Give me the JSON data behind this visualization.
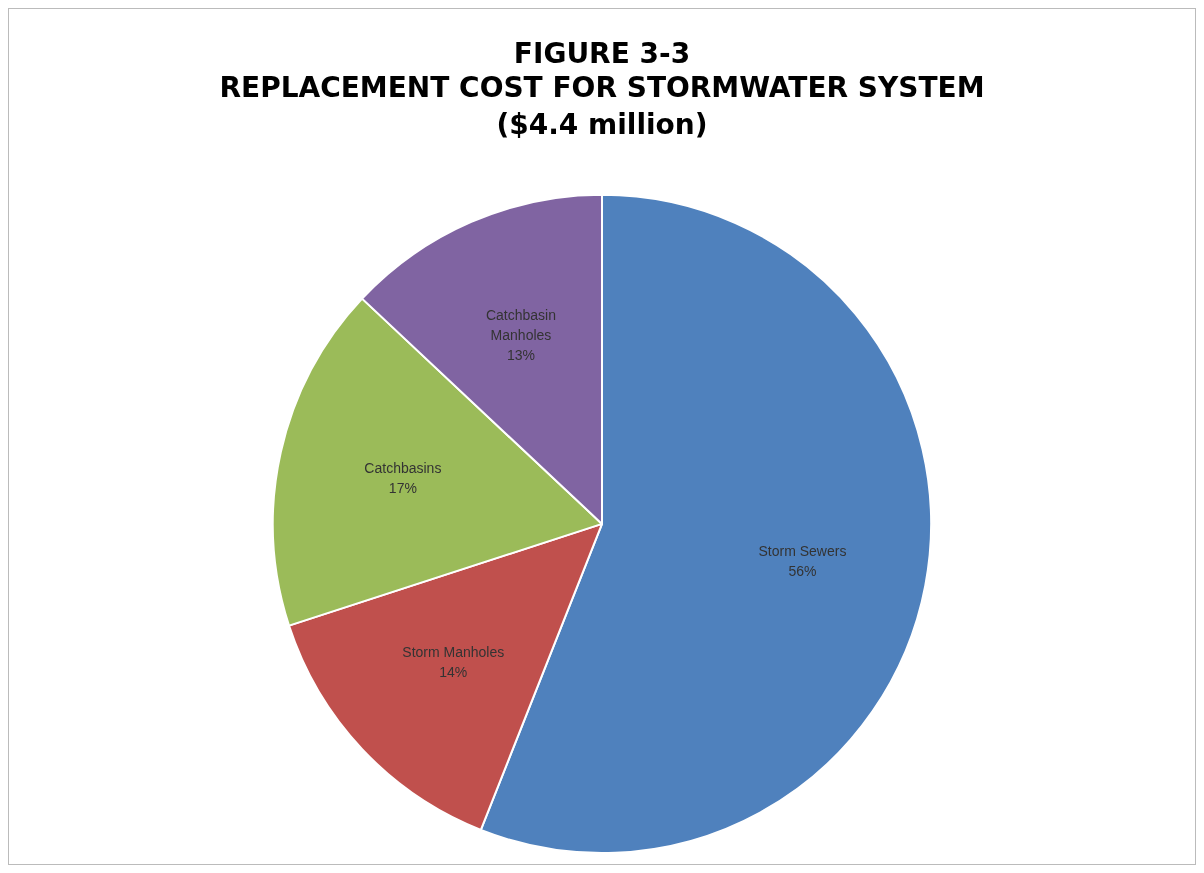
{
  "chart_data": {
    "type": "pie",
    "title": "FIGURE 3-3\nREPLACEMENT COST FOR STORMWATER SYSTEM",
    "subtitle": "($4.4 million)",
    "categories": [
      "Storm Sewers",
      "Storm Manholes",
      "Catchbasins",
      "Catchbasin\nManholes"
    ],
    "values": [
      56,
      14,
      17,
      13
    ],
    "colors": [
      "#4f81bd",
      "#c0504d",
      "#9bbb59",
      "#8064a2"
    ],
    "value_labels": [
      "56%",
      "14%",
      "17%",
      "13%"
    ],
    "legend": false
  }
}
